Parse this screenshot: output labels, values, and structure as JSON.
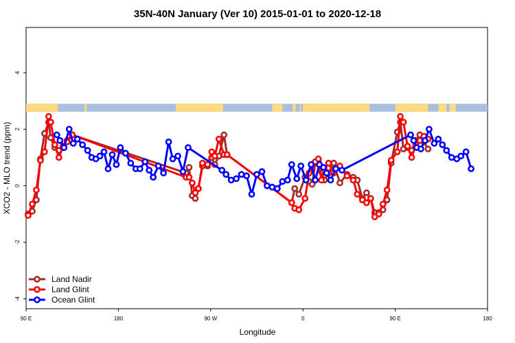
{
  "chart_data": {
    "type": "line",
    "title": "35N-40N January (Ver 10)   2015-01-01 to 2020-12-18",
    "xlabel": "Longitude",
    "ylabel": "XCO2 - MLO trend (ppm)",
    "x_ticks": [
      {
        "value": 90,
        "label": "90 E"
      },
      {
        "value": 180,
        "label": "180"
      },
      {
        "value": 270,
        "label": "90 W"
      },
      {
        "value": 360,
        "label": "0"
      },
      {
        "value": 450,
        "label": "90 E"
      },
      {
        "value": 540,
        "label": "180"
      }
    ],
    "y_ticks": [
      {
        "value": -4,
        "label": "-4"
      },
      {
        "value": -2,
        "label": "-2"
      },
      {
        "value": 0,
        "label": "0"
      },
      {
        "value": 2,
        "label": "2"
      },
      {
        "value": 4,
        "label": "4"
      }
    ],
    "xlim": [
      90,
      540
    ],
    "ylim": [
      -4.35,
      5.6
    ],
    "grid": false,
    "legend_position": "bottom-left",
    "land_ocean_band": {
      "y_range": [
        2.62,
        2.9
      ],
      "land_color": "#ffd97f",
      "ocean_color": "#a9bfdf",
      "land_segments": [
        [
          90,
          121
        ],
        [
          104,
          108
        ],
        [
          147,
          149
        ],
        [
          236,
          282
        ],
        [
          330,
          340
        ],
        [
          350,
          353
        ],
        [
          357,
          358
        ],
        [
          360,
          425
        ],
        [
          365,
          368
        ],
        [
          377,
          378
        ],
        [
          385,
          387
        ],
        [
          410,
          412
        ],
        [
          450,
          482
        ],
        [
          492,
          500
        ],
        [
          503,
          509
        ]
      ]
    },
    "series": [
      {
        "name": "Land Nadir",
        "color": "#a52a2a",
        "x": [
          92,
          96,
          100,
          104,
          108,
          112,
          114,
          118,
          122,
          126,
          130,
          135,
          246,
          249,
          252,
          255,
          258,
          262,
          267,
          271,
          274,
          278,
          283,
          286,
          349,
          352,
          356,
          362,
          366,
          369,
          372,
          375,
          378,
          381,
          385,
          390,
          396,
          403,
          409,
          413,
          418,
          422,
          426,
          430,
          434,
          438,
          442,
          446,
          452,
          455,
          458,
          462,
          466,
          470,
          474,
          478,
          482
        ],
        "y": [
          -1.0,
          -0.9,
          -0.5,
          0.95,
          1.85,
          2.25,
          1.7,
          1.35,
          1.25,
          1.35,
          1.6,
          1.8,
          0.45,
          0.65,
          -0.35,
          -0.45,
          -0.1,
          0.7,
          0.7,
          1.0,
          0.75,
          1.05,
          1.8,
          1.1,
          -0.6,
          -0.1,
          -0.3,
          0.3,
          0.15,
          0.05,
          0.8,
          0.9,
          0.5,
          0.2,
          0.45,
          0.8,
          0.1,
          0.4,
          0.3,
          0.2,
          -0.45,
          -0.25,
          -0.45,
          -0.95,
          -0.95,
          -0.85,
          -0.5,
          0.8,
          1.9,
          2.25,
          1.3,
          1.35,
          1.25,
          1.6,
          1.8,
          1.55,
          1.3
        ]
      },
      {
        "name": "Land Glint",
        "color": "#ff0000",
        "x": [
          92,
          96,
          100,
          104,
          108,
          112,
          114,
          118,
          122,
          126,
          130,
          135,
          246,
          249,
          252,
          255,
          258,
          262,
          267,
          271,
          274,
          278,
          283,
          286,
          349,
          352,
          356,
          362,
          366,
          369,
          372,
          375,
          378,
          381,
          385,
          390,
          396,
          403,
          409,
          413,
          418,
          422,
          426,
          430,
          434,
          438,
          442,
          446,
          452,
          455,
          458,
          462,
          466,
          470,
          474,
          478,
          482
        ],
        "y": [
          -1.05,
          -0.65,
          -0.15,
          0.9,
          1.2,
          2.45,
          2.25,
          1.45,
          1.0,
          1.4,
          1.55,
          1.8,
          0.3,
          0.3,
          0.1,
          -0.25,
          -0.1,
          0.8,
          0.75,
          1.2,
          1.05,
          1.65,
          1.1,
          1.1,
          -0.6,
          -0.8,
          -0.85,
          -0.45,
          0.45,
          0.7,
          0.85,
          0.95,
          0.2,
          0.55,
          0.8,
          0.45,
          0.7,
          0.35,
          0.2,
          -0.3,
          -0.5,
          -0.6,
          -0.45,
          -1.1,
          -1.0,
          -0.65,
          -0.15,
          0.9,
          1.2,
          2.45,
          2.25,
          1.4,
          1.0,
          1.45,
          1.6,
          1.75,
          1.65
        ]
      },
      {
        "name": "Ocean Glint",
        "color": "#0000ff",
        "x": [
          120,
          123,
          127,
          132,
          136,
          140,
          145,
          150,
          154,
          158,
          162,
          166,
          170,
          174,
          178,
          182,
          187,
          192,
          197,
          201,
          206,
          210,
          214,
          219,
          224,
          229,
          233,
          238,
          243,
          248,
          281,
          285,
          290,
          295,
          300,
          305,
          310,
          315,
          320,
          325,
          330,
          335,
          340,
          345,
          349,
          354,
          358,
          363,
          368,
          372,
          376,
          380,
          383,
          387,
          392,
          398,
          465,
          468,
          471,
          475,
          479,
          483,
          488,
          492,
          496,
          500,
          505,
          510,
          514,
          519,
          524
        ],
        "y": [
          1.8,
          1.6,
          1.35,
          2.0,
          1.5,
          1.65,
          1.45,
          1.25,
          1.0,
          0.95,
          1.05,
          1.2,
          0.6,
          1.1,
          0.75,
          1.35,
          1.15,
          0.8,
          0.6,
          0.6,
          0.85,
          0.55,
          0.3,
          0.7,
          0.45,
          1.55,
          0.95,
          1.05,
          0.5,
          1.35,
          0.55,
          0.4,
          0.2,
          0.25,
          0.4,
          0.35,
          -0.3,
          0.4,
          0.5,
          0.0,
          -0.05,
          -0.1,
          0.15,
          0.2,
          0.75,
          0.25,
          0.7,
          0.2,
          0.75,
          0.2,
          0.75,
          0.65,
          0.45,
          0.2,
          0.6,
          0.55,
          1.8,
          1.6,
          1.35,
          1.3,
          1.6,
          2.0,
          1.5,
          1.65,
          1.45,
          1.25,
          1.0,
          0.95,
          1.05,
          1.2,
          0.6
        ]
      }
    ]
  }
}
